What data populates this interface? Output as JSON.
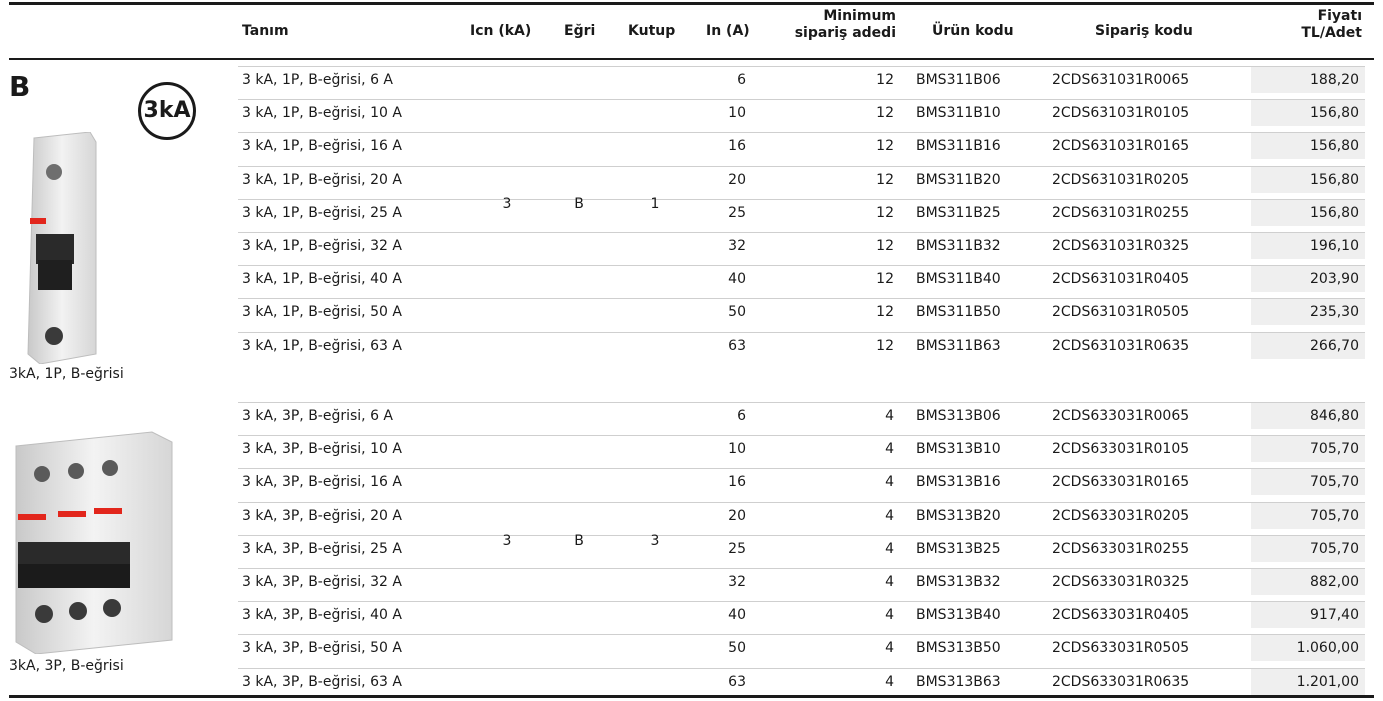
{
  "header": {
    "tanim": "Tanım",
    "icn": "Icn (kA)",
    "egri": "Eğri",
    "kutup": "Kutup",
    "in": "In (A)",
    "min_line1": "Minimum",
    "min_line2": "sipariş adedi",
    "urun": "Ürün kodu",
    "siparis": "Sipariş kodu",
    "fiyat_line1": "Fiyatı",
    "fiyat_line2": "TL/Adet"
  },
  "section": {
    "letter": "B",
    "badge": "3kA"
  },
  "groups": [
    {
      "caption": "3kA, 1P, B-eğrisi",
      "icn": "3",
      "egri": "B",
      "kutup": "1",
      "rows": [
        {
          "desc": "3 kA, 1P, B-eğrisi, 6 A",
          "in": "6",
          "min": "12",
          "urun": "BMS311B06",
          "siparis": "2CDS631031R0065",
          "price": "188,20"
        },
        {
          "desc": "3 kA, 1P, B-eğrisi, 10 A",
          "in": "10",
          "min": "12",
          "urun": "BMS311B10",
          "siparis": "2CDS631031R0105",
          "price": "156,80"
        },
        {
          "desc": "3 kA, 1P, B-eğrisi, 16 A",
          "in": "16",
          "min": "12",
          "urun": "BMS311B16",
          "siparis": "2CDS631031R0165",
          "price": "156,80"
        },
        {
          "desc": "3 kA, 1P, B-eğrisi, 20 A",
          "in": "20",
          "min": "12",
          "urun": "BMS311B20",
          "siparis": "2CDS631031R0205",
          "price": "156,80"
        },
        {
          "desc": "3 kA, 1P, B-eğrisi, 25 A",
          "in": "25",
          "min": "12",
          "urun": "BMS311B25",
          "siparis": "2CDS631031R0255",
          "price": "156,80"
        },
        {
          "desc": "3 kA, 1P, B-eğrisi, 32 A",
          "in": "32",
          "min": "12",
          "urun": "BMS311B32",
          "siparis": "2CDS631031R0325",
          "price": "196,10"
        },
        {
          "desc": "3 kA, 1P, B-eğrisi, 40 A",
          "in": "40",
          "min": "12",
          "urun": "BMS311B40",
          "siparis": "2CDS631031R0405",
          "price": "203,90"
        },
        {
          "desc": "3 kA, 1P, B-eğrisi, 50 A",
          "in": "50",
          "min": "12",
          "urun": "BMS311B50",
          "siparis": "2CDS631031R0505",
          "price": "235,30"
        },
        {
          "desc": "3 kA, 1P, B-eğrisi, 63 A",
          "in": "63",
          "min": "12",
          "urun": "BMS311B63",
          "siparis": "2CDS631031R0635",
          "price": "266,70"
        }
      ]
    },
    {
      "caption": "3kA, 3P, B-eğrisi",
      "icn": "3",
      "egri": "B",
      "kutup": "3",
      "rows": [
        {
          "desc": "3 kA, 3P, B-eğrisi, 6 A",
          "in": "6",
          "min": "4",
          "urun": "BMS313B06",
          "siparis": "2CDS633031R0065",
          "price": "846,80"
        },
        {
          "desc": "3 kA, 3P, B-eğrisi, 10 A",
          "in": "10",
          "min": "4",
          "urun": "BMS313B10",
          "siparis": "2CDS633031R0105",
          "price": "705,70"
        },
        {
          "desc": "3 kA, 3P, B-eğrisi, 16 A",
          "in": "16",
          "min": "4",
          "urun": "BMS313B16",
          "siparis": "2CDS633031R0165",
          "price": "705,70"
        },
        {
          "desc": "3 kA, 3P, B-eğrisi, 20 A",
          "in": "20",
          "min": "4",
          "urun": "BMS313B20",
          "siparis": "2CDS633031R0205",
          "price": "705,70"
        },
        {
          "desc": "3 kA, 3P, B-eğrisi, 25 A",
          "in": "25",
          "min": "4",
          "urun": "BMS313B25",
          "siparis": "2CDS633031R0255",
          "price": "705,70"
        },
        {
          "desc": "3 kA, 3P, B-eğrisi, 32 A",
          "in": "32",
          "min": "4",
          "urun": "BMS313B32",
          "siparis": "2CDS633031R0325",
          "price": "882,00"
        },
        {
          "desc": "3 kA, 3P, B-eğrisi, 40 A",
          "in": "40",
          "min": "4",
          "urun": "BMS313B40",
          "siparis": "2CDS633031R0405",
          "price": "917,40"
        },
        {
          "desc": "3 kA, 3P, B-eğrisi, 50 A",
          "in": "50",
          "min": "4",
          "urun": "BMS313B50",
          "siparis": "2CDS633031R0505",
          "price": "1.060,00"
        },
        {
          "desc": "3 kA, 3P, B-eğrisi, 63 A",
          "in": "63",
          "min": "4",
          "urun": "BMS313B63",
          "siparis": "2CDS633031R0635",
          "price": "1.201,00"
        }
      ]
    }
  ]
}
